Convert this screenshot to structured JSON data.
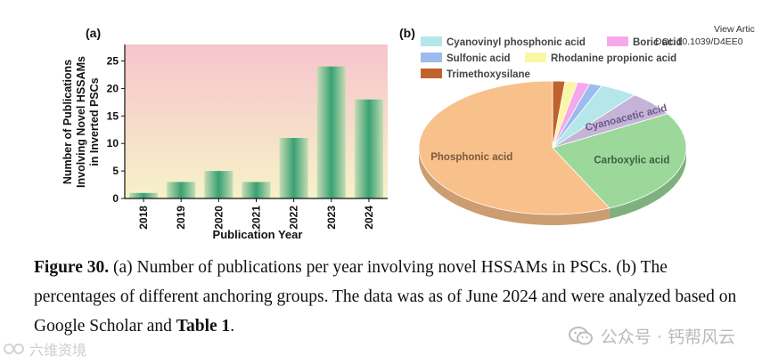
{
  "panel_a_label": "(a)",
  "panel_b_label": "(b)",
  "view_article": "View Artic",
  "doi": "DOI: 10.1039/D4EE0",
  "chart_data": [
    {
      "type": "bar",
      "panel": "(a)",
      "categories": [
        "2018",
        "2019",
        "2020",
        "2021",
        "2022",
        "2023",
        "2024"
      ],
      "values": [
        1,
        3,
        5,
        3,
        11,
        24,
        18
      ],
      "xlabel": "Publication Year",
      "ylabel_lines": [
        "Number of Publications",
        "Involving Novel HSSAMs",
        "in Inverted PSCs"
      ],
      "ylim": [
        0,
        28
      ],
      "yticks": [
        0,
        5,
        10,
        15,
        20,
        25
      ],
      "colors": {
        "bar_center": "#3aa275",
        "bar_edge": "#c9ddb8",
        "bg_top": "#f7c6cf",
        "bg_bottom": "#f5f1c9"
      }
    },
    {
      "type": "pie",
      "panel": "(b)",
      "slices": [
        {
          "label": "Trimethoxysilane",
          "value": 1.5,
          "color": "#c0622c",
          "show_label": false
        },
        {
          "label": "Rhodanine propionic acid",
          "value": 1.5,
          "color": "#fbf6a6",
          "show_label": false
        },
        {
          "label": "Boric acid",
          "value": 1.5,
          "color": "#f6a8ec",
          "show_label": false
        },
        {
          "label": "Sulfonic acid",
          "value": 1.5,
          "color": "#9cbcf0",
          "show_label": false
        },
        {
          "label": "Cyanovinyl phosphonic acid",
          "value": 4.5,
          "color": "#b4e6ea",
          "show_label": false
        },
        {
          "label": "Cyanoacetic acid",
          "value": 6.0,
          "color": "#c6b4d8",
          "show_label": true,
          "label_color": "#6a5a86"
        },
        {
          "label": "Carboxylic acid",
          "value": 26.5,
          "color": "#9bd89a",
          "show_label": true,
          "label_color": "#3f5f3f"
        },
        {
          "label": "Phosphonic acid",
          "value": 57.0,
          "color": "#f8c08a",
          "show_label": true,
          "label_color": "#7a5a3a"
        }
      ],
      "legend_rows": [
        [
          "Cyanovinyl phosphonic acid",
          "Boric acid"
        ],
        [
          "Sulfonic acid",
          "Rhodanine propionic acid"
        ],
        [
          "Trimethoxysilane"
        ]
      ]
    }
  ],
  "caption": {
    "figure_label": "Figure 30.",
    "text_1": " (a) Number of publications per year involving novel HSSAMs in PSCs. (b) The percentages of different anchoring groups. The data was as of June 2024 and were analyzed based on Google Scholar and ",
    "table_ref": "Table 1",
    "text_2": "."
  },
  "watermark_right": "公众号 · 钙帮风云",
  "watermark_left": "六维资境"
}
